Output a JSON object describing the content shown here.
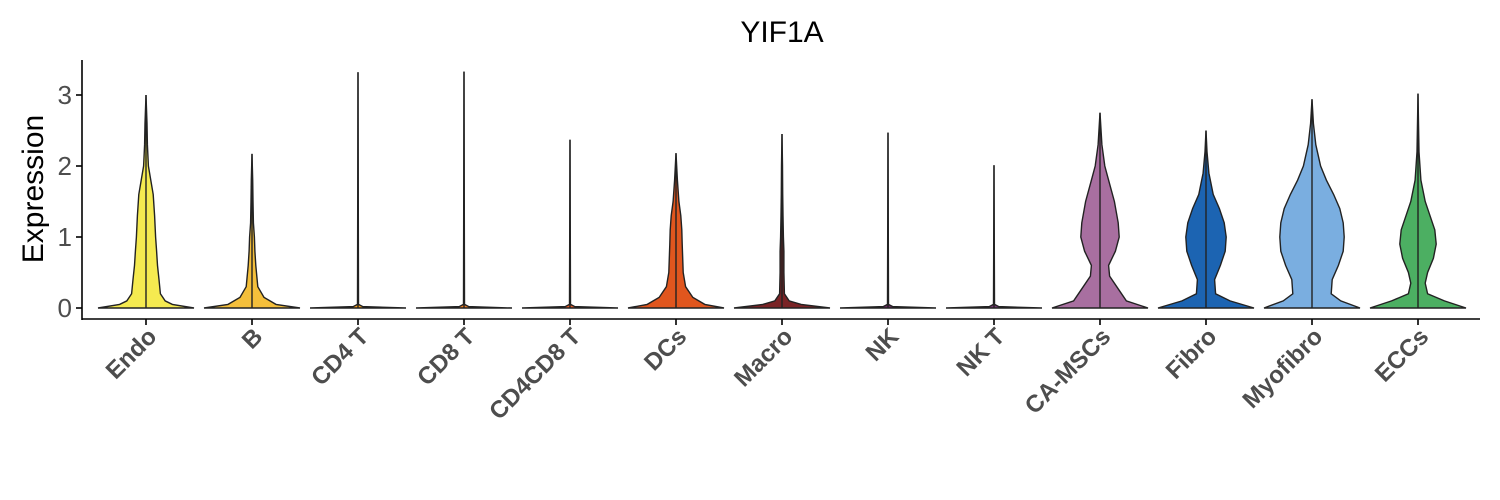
{
  "chart_data": {
    "type": "violin",
    "title": "YIF1A",
    "xlabel": "",
    "ylabel": "Expression",
    "ylim": [
      -0.15,
      3.5
    ],
    "yticks": [
      "0",
      "1",
      "2",
      "3"
    ],
    "grid": false,
    "legend": "none",
    "categories": [
      "Endo",
      "B",
      "CD4 T",
      "CD8 T",
      "CD4CD8 T",
      "DCs",
      "Macro",
      "NK",
      "NK T",
      "CA-MSCs",
      "Fibro",
      "Myofibro",
      "ECCs"
    ],
    "colors": [
      "#f5ea50",
      "#f4bf3b",
      "#f6a01f",
      "#f08027",
      "#e85c26",
      "#e0561e",
      "#7a2325",
      "#6b2b63",
      "#7b3a78",
      "#a86fa0",
      "#1c64b2",
      "#7aaee0",
      "#4caf62"
    ],
    "max_values": [
      3.0,
      2.17,
      3.32,
      3.33,
      2.37,
      2.18,
      2.45,
      2.47,
      2.01,
      2.75,
      2.5,
      2.94,
      3.02
    ],
    "violins": [
      {
        "name": "Endo",
        "density": [
          [
            0,
            1.0
          ],
          [
            0.05,
            0.55
          ],
          [
            0.1,
            0.4
          ],
          [
            0.2,
            0.3
          ],
          [
            0.4,
            0.27
          ],
          [
            0.6,
            0.24
          ],
          [
            0.8,
            0.22
          ],
          [
            1.0,
            0.2
          ],
          [
            1.3,
            0.18
          ],
          [
            1.6,
            0.15
          ],
          [
            1.8,
            0.1
          ],
          [
            2.0,
            0.05
          ],
          [
            2.3,
            0.03
          ],
          [
            2.6,
            0.02
          ],
          [
            3.0,
            0.0
          ]
        ]
      },
      {
        "name": "B",
        "density": [
          [
            0,
            1.0
          ],
          [
            0.05,
            0.5
          ],
          [
            0.15,
            0.25
          ],
          [
            0.3,
            0.12
          ],
          [
            0.45,
            0.1
          ],
          [
            0.6,
            0.08
          ],
          [
            0.8,
            0.06
          ],
          [
            1.0,
            0.05
          ],
          [
            1.2,
            0.03
          ],
          [
            1.5,
            0.02
          ],
          [
            1.8,
            0.015
          ],
          [
            2.17,
            0.0
          ]
        ]
      },
      {
        "name": "CD4 T",
        "density": [
          [
            0,
            1.0
          ],
          [
            0.02,
            0.1
          ],
          [
            0.05,
            0.01
          ],
          [
            3.32,
            0.0
          ]
        ]
      },
      {
        "name": "CD8 T",
        "density": [
          [
            0,
            1.0
          ],
          [
            0.02,
            0.1
          ],
          [
            0.05,
            0.01
          ],
          [
            3.33,
            0.0
          ]
        ]
      },
      {
        "name": "CD4CD8 T",
        "density": [
          [
            0,
            1.0
          ],
          [
            0.02,
            0.1
          ],
          [
            0.05,
            0.01
          ],
          [
            2.37,
            0.0
          ]
        ]
      },
      {
        "name": "DCs",
        "density": [
          [
            0,
            1.0
          ],
          [
            0.05,
            0.6
          ],
          [
            0.15,
            0.35
          ],
          [
            0.3,
            0.2
          ],
          [
            0.5,
            0.15
          ],
          [
            0.7,
            0.14
          ],
          [
            0.9,
            0.13
          ],
          [
            1.1,
            0.12
          ],
          [
            1.3,
            0.1
          ],
          [
            1.5,
            0.06
          ],
          [
            1.8,
            0.03
          ],
          [
            2.18,
            0.0
          ]
        ]
      },
      {
        "name": "Macro",
        "density": [
          [
            0,
            1.0
          ],
          [
            0.05,
            0.4
          ],
          [
            0.1,
            0.15
          ],
          [
            0.2,
            0.05
          ],
          [
            0.5,
            0.04
          ],
          [
            0.8,
            0.04
          ],
          [
            1.0,
            0.03
          ],
          [
            1.3,
            0.02
          ],
          [
            1.6,
            0.015
          ],
          [
            2.0,
            0.01
          ],
          [
            2.45,
            0.0
          ]
        ]
      },
      {
        "name": "NK",
        "density": [
          [
            0,
            1.0
          ],
          [
            0.02,
            0.1
          ],
          [
            0.05,
            0.01
          ],
          [
            2.47,
            0.0
          ]
        ]
      },
      {
        "name": "NK T",
        "density": [
          [
            0,
            1.0
          ],
          [
            0.02,
            0.1
          ],
          [
            0.05,
            0.01
          ],
          [
            2.01,
            0.0
          ]
        ]
      },
      {
        "name": "CA-MSCs",
        "density": [
          [
            0,
            1.0
          ],
          [
            0.1,
            0.55
          ],
          [
            0.25,
            0.4
          ],
          [
            0.45,
            0.2
          ],
          [
            0.6,
            0.18
          ],
          [
            0.8,
            0.32
          ],
          [
            1.0,
            0.4
          ],
          [
            1.2,
            0.38
          ],
          [
            1.5,
            0.3
          ],
          [
            1.8,
            0.18
          ],
          [
            2.0,
            0.1
          ],
          [
            2.3,
            0.04
          ],
          [
            2.75,
            0.0
          ]
        ]
      },
      {
        "name": "Fibro",
        "density": [
          [
            0,
            1.0
          ],
          [
            0.1,
            0.5
          ],
          [
            0.2,
            0.2
          ],
          [
            0.4,
            0.18
          ],
          [
            0.6,
            0.3
          ],
          [
            0.8,
            0.4
          ],
          [
            1.0,
            0.42
          ],
          [
            1.2,
            0.38
          ],
          [
            1.4,
            0.28
          ],
          [
            1.6,
            0.15
          ],
          [
            1.9,
            0.06
          ],
          [
            2.2,
            0.02
          ],
          [
            2.5,
            0.0
          ]
        ]
      },
      {
        "name": "Myofibro",
        "density": [
          [
            0,
            1.0
          ],
          [
            0.1,
            0.6
          ],
          [
            0.2,
            0.4
          ],
          [
            0.4,
            0.42
          ],
          [
            0.6,
            0.55
          ],
          [
            0.8,
            0.65
          ],
          [
            1.0,
            0.67
          ],
          [
            1.2,
            0.65
          ],
          [
            1.4,
            0.58
          ],
          [
            1.6,
            0.45
          ],
          [
            1.8,
            0.3
          ],
          [
            2.0,
            0.18
          ],
          [
            2.3,
            0.08
          ],
          [
            2.6,
            0.03
          ],
          [
            2.94,
            0.0
          ]
        ]
      },
      {
        "name": "ECCs",
        "density": [
          [
            0,
            1.0
          ],
          [
            0.1,
            0.55
          ],
          [
            0.2,
            0.2
          ],
          [
            0.35,
            0.15
          ],
          [
            0.5,
            0.2
          ],
          [
            0.7,
            0.32
          ],
          [
            0.9,
            0.38
          ],
          [
            1.1,
            0.35
          ],
          [
            1.3,
            0.25
          ],
          [
            1.5,
            0.15
          ],
          [
            1.8,
            0.06
          ],
          [
            2.2,
            0.02
          ],
          [
            2.6,
            0.01
          ],
          [
            3.02,
            0.0
          ]
        ]
      }
    ]
  }
}
